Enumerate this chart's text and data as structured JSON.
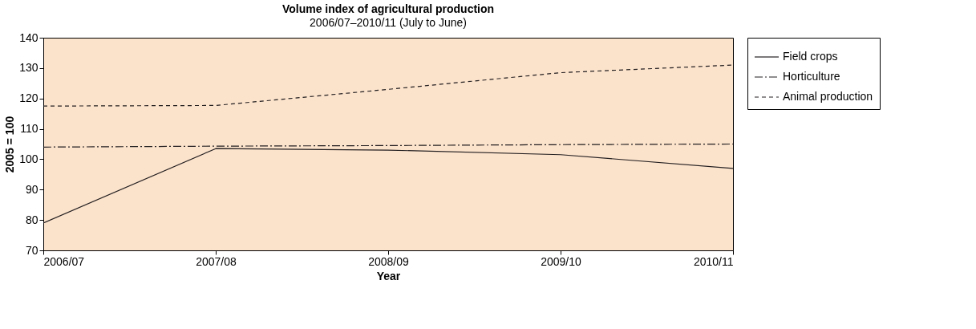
{
  "chart_data": {
    "type": "line",
    "title": "Volume index of agricultural production",
    "subtitle": "2006/07–2010/11 (July to June)",
    "xlabel": "Year",
    "ylabel": "2005 = 100",
    "categories": [
      "2006/07",
      "2007/08",
      "2008/09",
      "2009/10",
      "2010/11"
    ],
    "series": [
      {
        "name": "Field crops",
        "color": "#231f20",
        "line_style": "solid",
        "values": [
          79,
          103.5,
          103,
          101.5,
          97
        ]
      },
      {
        "name": "Horticulture",
        "color": "#231f20",
        "line_style": "dashdot",
        "values": [
          104,
          104.3,
          104.5,
          104.8,
          105
        ]
      },
      {
        "name": "Animal production",
        "color": "#231f20",
        "line_style": "dashed",
        "values": [
          117.5,
          117.7,
          123,
          128.5,
          131
        ]
      }
    ],
    "ylim": [
      70,
      140
    ],
    "yticks": [
      70,
      80,
      90,
      100,
      110,
      120,
      130,
      140
    ],
    "grid": false,
    "legend": "right",
    "marker": "none"
  }
}
